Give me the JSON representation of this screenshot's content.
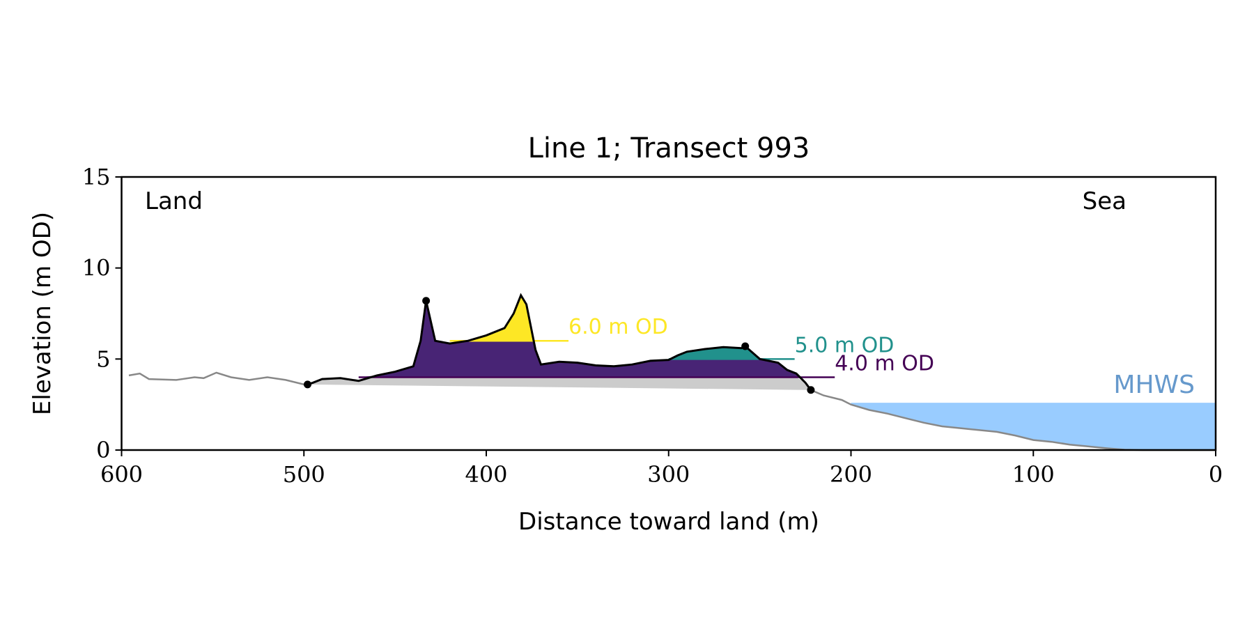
{
  "chart_data": {
    "type": "line",
    "title": "Line 1; Transect 993",
    "xlabel": "Distance toward land (m)",
    "ylabel": "Elevation (m OD)",
    "annotations": [
      "Land",
      "Sea"
    ],
    "xlim": [
      600,
      0
    ],
    "xticks": [
      600,
      500,
      400,
      300,
      200,
      100,
      0
    ],
    "ylim": [
      0,
      15
    ],
    "yticks": [
      0,
      5,
      10,
      15
    ],
    "profile": {
      "color": "#888888",
      "x": [
        596,
        590,
        585,
        570,
        560,
        555,
        548,
        540,
        530,
        520,
        510,
        500,
        495,
        490,
        480,
        470,
        460,
        450,
        440,
        436,
        433,
        428,
        420,
        410,
        400,
        390,
        385,
        381,
        378,
        373,
        370,
        360,
        350,
        340,
        330,
        320,
        310,
        300,
        295,
        290,
        280,
        270,
        260,
        258,
        250,
        240,
        235,
        230,
        225,
        222,
        215,
        205,
        200,
        190,
        180,
        170,
        160,
        150,
        140,
        130,
        120,
        110,
        100,
        90,
        80,
        70,
        60,
        50,
        40,
        30,
        20,
        10,
        0
      ],
      "y": [
        4.1,
        4.2,
        3.9,
        3.85,
        4.0,
        3.95,
        4.25,
        4.0,
        3.85,
        4.0,
        3.85,
        3.6,
        3.7,
        3.9,
        3.95,
        3.8,
        4.1,
        4.3,
        4.6,
        6.0,
        8.2,
        6.0,
        5.85,
        6.0,
        6.3,
        6.7,
        7.5,
        8.5,
        8.0,
        5.5,
        4.7,
        4.85,
        4.8,
        4.65,
        4.6,
        4.7,
        4.9,
        4.95,
        5.2,
        5.4,
        5.55,
        5.65,
        5.6,
        5.7,
        5.0,
        4.8,
        4.4,
        4.2,
        3.7,
        3.3,
        3.0,
        2.75,
        2.5,
        2.2,
        2.0,
        1.75,
        1.5,
        1.3,
        1.2,
        1.1,
        1.0,
        0.8,
        0.55,
        0.45,
        0.3,
        0.2,
        0.1,
        0.02,
        0,
        0,
        0,
        0,
        0
      ]
    },
    "points": {
      "x": [
        498,
        433,
        258,
        222
      ],
      "y": [
        3.6,
        8.2,
        5.7,
        3.3
      ],
      "color": "#000000"
    },
    "levels": [
      {
        "label": "4.0 m OD",
        "value": 4.0,
        "color": "#440154",
        "fill": "#482475",
        "xrange": [
          470,
          228
        ]
      },
      {
        "label": "5.0 m OD",
        "value": 5.0,
        "color": "#21918c",
        "fill": "#21918c",
        "xrange": [
          300,
          250
        ]
      },
      {
        "label": "6.0 m OD",
        "value": 6.0,
        "color": "#fde725",
        "fill": "#fde725",
        "xrange": [
          420,
          374
        ]
      }
    ],
    "mhws": {
      "label": "MHWS",
      "value": 2.6,
      "xrange": [
        200,
        0
      ],
      "color": "#6699cc",
      "fill": "#99ccff"
    }
  }
}
